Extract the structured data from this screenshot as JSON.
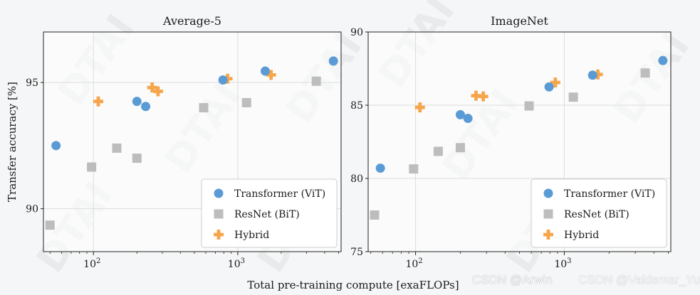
{
  "chart_data": [
    {
      "type": "scatter",
      "title": "Average-5",
      "ylabel": "Transfer accuracy [%]",
      "xscale": "log",
      "xlim": [
        45,
        5200
      ],
      "ylim": [
        88.3,
        97.0
      ],
      "yticks": [
        90,
        95
      ],
      "xticks": [
        {
          "value": 100,
          "base": "10",
          "exp": "2"
        },
        {
          "value": 1000,
          "base": "10",
          "exp": "3"
        }
      ],
      "grid": true,
      "legend_position": "lower-right",
      "series": [
        {
          "name": "Transformer (ViT)",
          "marker": "circle",
          "color": "#5b9bd5",
          "points": [
            [
              55,
              92.5
            ],
            [
              200,
              94.25
            ],
            [
              230,
              94.05
            ],
            [
              790,
              95.1
            ],
            [
              1550,
              95.45
            ],
            [
              4600,
              95.85
            ]
          ]
        },
        {
          "name": "ResNet (BiT)",
          "marker": "square",
          "color": "#bdbdbd",
          "points": [
            [
              50,
              89.35
            ],
            [
              97,
              91.65
            ],
            [
              145,
              92.4
            ],
            [
              200,
              92.0
            ],
            [
              580,
              94.0
            ],
            [
              1150,
              94.2
            ],
            [
              3500,
              95.05
            ]
          ]
        },
        {
          "name": "Hybrid",
          "marker": "plus",
          "color": "#f6a54b",
          "points": [
            [
              108,
              94.25
            ],
            [
              255,
              94.8
            ],
            [
              280,
              94.65
            ],
            [
              850,
              95.15
            ],
            [
              1700,
              95.3
            ]
          ]
        }
      ]
    },
    {
      "type": "scatter",
      "title": "ImageNet",
      "ylabel": "",
      "xscale": "log",
      "xlim": [
        48,
        5200
      ],
      "ylim": [
        75,
        90
      ],
      "yticks": [
        75,
        80,
        85,
        90
      ],
      "xticks": [
        {
          "value": 100,
          "base": "10",
          "exp": "2"
        },
        {
          "value": 1000,
          "base": "10",
          "exp": "3"
        }
      ],
      "grid": true,
      "legend_position": "lower-right",
      "series": [
        {
          "name": "Transformer (ViT)",
          "marker": "circle",
          "color": "#5b9bd5",
          "points": [
            [
              58,
              80.7
            ],
            [
              200,
              84.35
            ],
            [
              225,
              84.1
            ],
            [
              790,
              86.25
            ],
            [
              1550,
              87.05
            ],
            [
              4600,
              88.05
            ]
          ]
        },
        {
          "name": "ResNet (BiT)",
          "marker": "square",
          "color": "#bdbdbd",
          "points": [
            [
              53,
              77.5
            ],
            [
              97,
              80.65
            ],
            [
              142,
              81.85
            ],
            [
              200,
              82.1
            ],
            [
              580,
              84.95
            ],
            [
              1150,
              85.55
            ],
            [
              3500,
              87.2
            ]
          ]
        },
        {
          "name": "Hybrid",
          "marker": "plus",
          "color": "#f6a54b",
          "points": [
            [
              107,
              84.85
            ],
            [
              255,
              85.65
            ],
            [
              285,
              85.6
            ],
            [
              870,
              86.55
            ],
            [
              1680,
              87.1
            ]
          ]
        }
      ]
    }
  ],
  "shared_xlabel": "Total pre-training compute [exaFLOPs]",
  "watermark": {
    "text": "DTAI",
    "csdn_primary": "CSDN @Arwin",
    "csdn_secondary": "CSDN @Valdemar_Yu"
  }
}
